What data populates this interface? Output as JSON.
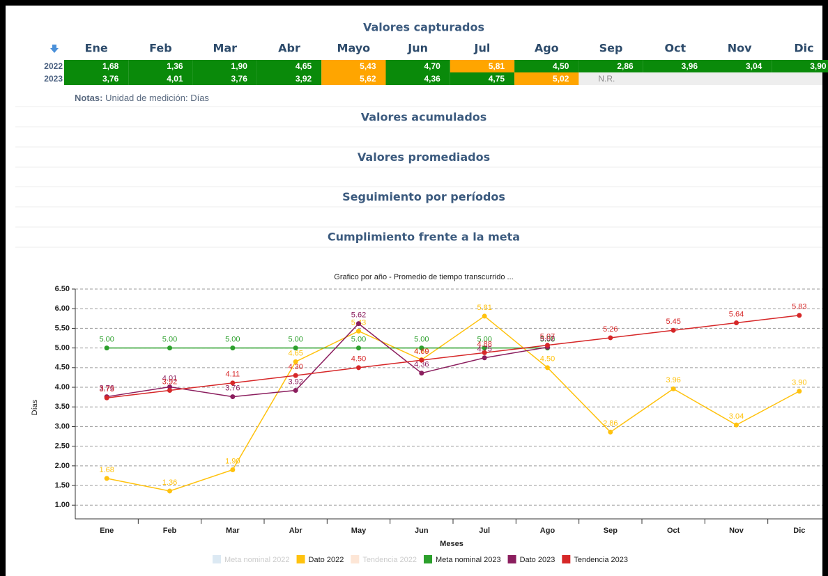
{
  "table": {
    "title": "Valores capturados",
    "header": [
      "Ene",
      "Feb",
      "Mar",
      "Abr",
      "Mayo",
      "Jun",
      "Jul",
      "Ago",
      "Sep",
      "Oct",
      "Nov",
      "Dic"
    ],
    "rows": [
      {
        "year": "2022",
        "cells": [
          "1,68",
          "1,36",
          "1,90",
          "4,65",
          "5,43",
          "4,70",
          "5,81",
          "4,50",
          "2,86",
          "3,96",
          "3,04",
          "3,90"
        ],
        "colors": [
          "#0a8a0a",
          "#0a8a0a",
          "#0a8a0a",
          "#0a8a0a",
          "#ffa500",
          "#0a8a0a",
          "#ffa500",
          "#0a8a0a",
          "#0a8a0a",
          "#0a8a0a",
          "#0a8a0a",
          "#0a8a0a"
        ],
        "text_colors": [
          "#ffffff",
          "#ffffff",
          "#ffffff",
          "#ffffff",
          "#ffffff",
          "#ffffff",
          "#ffffff",
          "#ffffff",
          "#ffffff",
          "#ffffff",
          "#ffffff",
          "#ffffff"
        ]
      },
      {
        "year": "2023",
        "cells": [
          "3,76",
          "4,01",
          "3,76",
          "3,92",
          "5,62",
          "4,36",
          "4,75",
          "5,02",
          "N.R."
        ],
        "colors": [
          "#0a8a0a",
          "#0a8a0a",
          "#0a8a0a",
          "#0a8a0a",
          "#ffa500",
          "#0a8a0a",
          "#0a8a0a",
          "#ffa500",
          "#eeeeee"
        ],
        "text_colors": [
          "#ffffff",
          "#ffffff",
          "#ffffff",
          "#ffffff",
          "#ffffff",
          "#ffffff",
          "#ffffff",
          "#ffffff",
          "#8a8a8a"
        ]
      }
    ]
  },
  "notes": {
    "label": "Notas:",
    "text": "Unidad de medición: Días"
  },
  "sections": [
    "Valores acumulados",
    "Valores promediados",
    "Seguimiento por períodos",
    "Cumplimiento frente a la meta"
  ],
  "chart_data": {
    "type": "line",
    "title": "Grafico por año - Promedio de tiempo transcurrido ...",
    "xlabel": "Meses",
    "ylabel": "Días",
    "categories": [
      "Ene",
      "Feb",
      "Mar",
      "Abr",
      "May",
      "Jun",
      "Jul",
      "Ago",
      "Sep",
      "Oct",
      "Nov",
      "Dic"
    ],
    "ylim": [
      0.65,
      6.5
    ],
    "yticks": [
      {
        "value": 1,
        "label": "1.00"
      },
      {
        "value": 1.5,
        "label": "1.50"
      },
      {
        "value": 2,
        "label": "2.00"
      },
      {
        "value": 2.5,
        "label": "2.50"
      },
      {
        "value": 3,
        "label": "3.00"
      },
      {
        "value": 3.5,
        "label": "3.50"
      },
      {
        "value": 4,
        "label": "4.00"
      },
      {
        "value": 4.5,
        "label": "4.50"
      },
      {
        "value": 5,
        "label": "5.00"
      },
      {
        "value": 5.5,
        "label": "5.50"
      },
      {
        "value": 6,
        "label": "6.00"
      },
      {
        "value": 6.5,
        "label": "6.50"
      }
    ],
    "grid": true,
    "legend": "bottom",
    "series": [
      {
        "name": "Meta nominal 2022",
        "color": "#dce9f3",
        "visible": false
      },
      {
        "name": "Dato 2022",
        "color": "#ffc20e",
        "visible": true,
        "values": [
          1.68,
          1.36,
          1.9,
          4.65,
          5.43,
          4.7,
          5.81,
          4.5,
          2.86,
          3.96,
          3.04,
          3.9
        ],
        "value_labels": [
          "1.68",
          "1.36",
          "1.90",
          "4.65",
          "5.43",
          "4.70",
          "5.81",
          "4.50",
          "2.86",
          "3.96",
          "3.04",
          "3.90"
        ]
      },
      {
        "name": "Tendencia 2022",
        "color": "#fde6d6",
        "visible": false
      },
      {
        "name": "Meta nominal 2023",
        "color": "#2ca02c",
        "visible": true,
        "values": [
          5,
          5,
          5,
          5,
          5,
          5,
          5,
          5,
          null,
          null,
          null,
          null
        ],
        "value_labels": [
          "5.00",
          "5.00",
          "5.00",
          "5.00",
          "5.00",
          "5.00",
          "5.00",
          "5.00",
          null,
          null,
          null,
          null
        ]
      },
      {
        "name": "Dato 2023",
        "color": "#8b1e5e",
        "visible": true,
        "values": [
          3.76,
          4.01,
          3.76,
          3.92,
          5.62,
          4.36,
          4.75,
          5.02,
          null,
          null,
          null,
          null
        ],
        "value_labels": [
          "3.76",
          "4.01",
          "3.76",
          "3.92",
          "5.62",
          "4.36",
          "4.75",
          "5.02",
          null,
          null,
          null,
          null
        ]
      },
      {
        "name": "Tendencia 2023",
        "color": "#d62728",
        "visible": true,
        "values": [
          3.73,
          3.92,
          4.11,
          4.3,
          4.5,
          4.69,
          4.88,
          5.07,
          5.26,
          5.45,
          5.64,
          5.83
        ],
        "value_labels": [
          "3.73",
          "3.92",
          "4.11",
          "4.30",
          "4.50",
          "4.69",
          "4.88",
          "5.07",
          "5.26",
          "5.45",
          "5.64",
          "5.83"
        ]
      }
    ]
  }
}
